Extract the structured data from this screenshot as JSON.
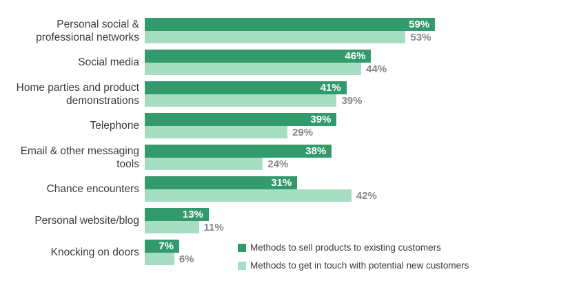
{
  "chart_data": {
    "type": "bar",
    "orientation": "horizontal",
    "title": "",
    "xlabel": "",
    "ylabel": "",
    "xlim": [
      0,
      100
    ],
    "value_unit": "%",
    "grid": false,
    "axes_visible": false,
    "legend_position": "bottom-right",
    "categories": [
      "Personal social &\nprofessional networks",
      "Social media",
      "Home parties and product\ndemonstrations",
      "Telephone",
      "Email & other messaging\ntools",
      "Chance encounters",
      "Personal website/blog",
      "Knocking on doors"
    ],
    "series": [
      {
        "name": "Methods to sell products to existing customers",
        "values": [
          59,
          46,
          41,
          39,
          38,
          31,
          13,
          7
        ],
        "labels": [
          "59%",
          "46%",
          "41%",
          "39%",
          "38%",
          "31%",
          "13%",
          "7%"
        ]
      },
      {
        "name": "Methods to get in touch with potential new customers",
        "values": [
          53,
          44,
          39,
          29,
          24,
          42,
          11,
          6
        ],
        "labels": [
          "53%",
          "44%",
          "39%",
          "29%",
          "24%",
          "42%",
          "11%",
          "6%"
        ]
      }
    ],
    "colors": {
      "sell_bar": "#339a6b",
      "new_bar": "#a7ddc2",
      "value_inside": "#ffffff",
      "value_outside": "#85878a",
      "text": "#3b3b3b"
    }
  }
}
